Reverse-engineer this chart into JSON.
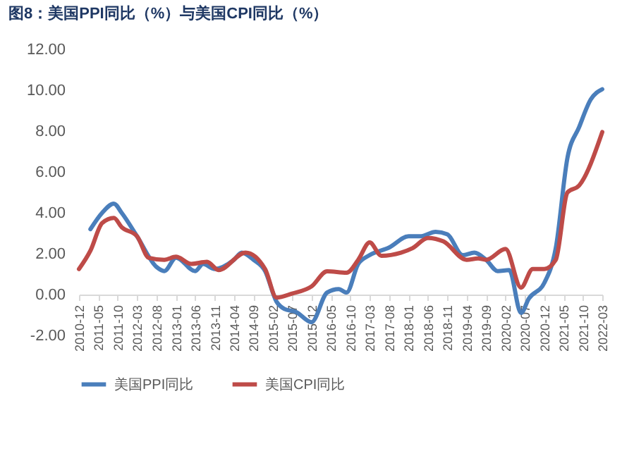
{
  "chart_data": {
    "type": "line",
    "title": "图8：美国PPI同比（%）与美国CPI同比（%）",
    "xlim": [
      "2010-12",
      "2022-03"
    ],
    "xticks": [
      "2010-12",
      "2011-05",
      "2011-10",
      "2012-03",
      "2012-08",
      "2013-01",
      "2013-06",
      "2013-11",
      "2014-04",
      "2014-09",
      "2015-02",
      "2015-07",
      "2015-12",
      "2016-05",
      "2016-10",
      "2017-03",
      "2017-08",
      "2018-01",
      "2018-06",
      "2018-11",
      "2019-04",
      "2019-09",
      "2020-02",
      "2020-07",
      "2020-12",
      "2021-05",
      "2021-10",
      "2022-03"
    ],
    "ylim": [
      -2,
      12
    ],
    "yticks": [
      {
        "value": -2,
        "label": "-2.00"
      },
      {
        "value": 0,
        "label": "0.00"
      },
      {
        "value": 2,
        "label": "2.00"
      },
      {
        "value": 4,
        "label": "4.00"
      },
      {
        "value": 6,
        "label": "6.00"
      },
      {
        "value": 8,
        "label": "8.00"
      },
      {
        "value": 10,
        "label": "10.00"
      },
      {
        "value": 12,
        "label": "12.00"
      }
    ],
    "grid": false,
    "legend": "bottom",
    "marker": "none",
    "line_style": "solid",
    "series": [
      {
        "name": "美国PPI同比",
        "color": "#4a7ebb",
        "x": [
          "2011-03",
          "2011-06",
          "2011-09",
          "2011-11",
          "2012-03",
          "2012-08",
          "2012-10",
          "2013-01",
          "2013-06",
          "2013-08",
          "2013-11",
          "2014-04",
          "2014-06",
          "2014-09",
          "2014-12",
          "2015-03",
          "2015-05",
          "2015-08",
          "2015-12",
          "2016-04",
          "2016-07",
          "2016-09",
          "2016-12",
          "2017-03",
          "2017-08",
          "2018-01",
          "2018-04",
          "2018-08",
          "2018-11",
          "2019-03",
          "2019-06",
          "2019-09",
          "2019-12",
          "2020-03",
          "2020-06",
          "2020-08",
          "2020-12",
          "2021-03",
          "2021-06",
          "2021-09",
          "2021-12",
          "2022-03"
        ],
        "values": [
          3.2,
          4.0,
          4.45,
          4.0,
          2.85,
          1.35,
          1.15,
          1.8,
          1.15,
          1.5,
          1.25,
          1.7,
          2.05,
          1.7,
          1.15,
          -0.35,
          -0.7,
          -0.85,
          -1.35,
          0.1,
          0.27,
          0.1,
          1.5,
          1.93,
          2.3,
          2.85,
          2.85,
          3.07,
          2.95,
          1.93,
          2.05,
          1.7,
          1.15,
          1.2,
          -0.9,
          -0.2,
          0.57,
          2.27,
          6.7,
          8.2,
          9.55,
          10.05
        ]
      },
      {
        "name": "美国CPI同比",
        "color": "#be4b48",
        "x": [
          "2010-12",
          "2011-03",
          "2011-06",
          "2011-09",
          "2011-11",
          "2012-03",
          "2012-06",
          "2012-10",
          "2013-01",
          "2013-05",
          "2013-09",
          "2013-12",
          "2014-07",
          "2014-12",
          "2015-03",
          "2015-07",
          "2015-12",
          "2016-04",
          "2016-09",
          "2016-12",
          "2017-03",
          "2017-06",
          "2017-11",
          "2018-02",
          "2018-06",
          "2018-10",
          "2019-04",
          "2019-07",
          "2019-09",
          "2020-02",
          "2020-06",
          "2020-09",
          "2020-12",
          "2021-03",
          "2021-06",
          "2021-09",
          "2022-03"
        ],
        "values": [
          1.25,
          2.15,
          3.5,
          3.75,
          3.3,
          2.85,
          1.8,
          1.7,
          1.85,
          1.5,
          1.6,
          1.2,
          2.05,
          1.25,
          -0.15,
          0.05,
          0.4,
          1.14,
          1.07,
          1.7,
          2.55,
          1.9,
          2.05,
          2.27,
          2.77,
          2.6,
          1.7,
          1.77,
          1.7,
          2.23,
          0.34,
          1.25,
          1.25,
          1.7,
          5.0,
          5.34,
          7.95
        ]
      }
    ]
  }
}
